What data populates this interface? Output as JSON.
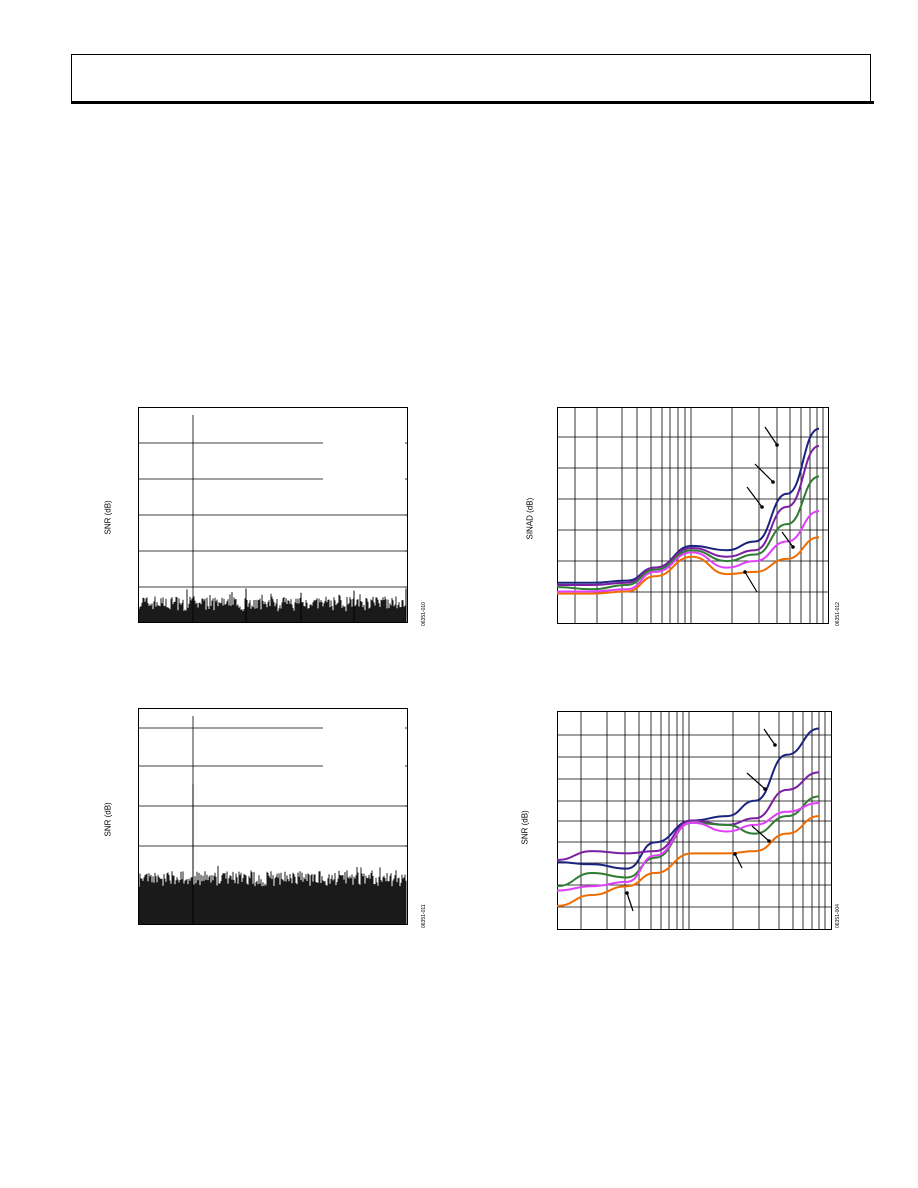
{
  "page": {
    "header": {
      "text": ""
    }
  },
  "figures": [
    {
      "id": "fig-fft-1",
      "ylabel": "SNR (dB)",
      "code": "06351-010",
      "type": "fft"
    },
    {
      "id": "fig-sinad",
      "ylabel": "SINAD (dB)",
      "code": "06351-012",
      "type": "log-curves"
    },
    {
      "id": "fig-fft-2",
      "ylabel": "SNR (dB)",
      "code": "06351-011",
      "type": "fft"
    },
    {
      "id": "fig-snr",
      "ylabel": "SNR (dB)",
      "code": "06351-004",
      "type": "log-curves"
    }
  ],
  "chart_data": [
    {
      "type": "bar",
      "title": "",
      "ylabel": "SNR (dB)",
      "xlabel": "",
      "description_note": "",
      "noise_floor_relative": 0.92,
      "spurs_relative_x": [
        0.4,
        0.6,
        0.8,
        1.0
      ],
      "spur_heights_relative": [
        0.84,
        0.86,
        0.85,
        0.84
      ]
    },
    {
      "type": "line",
      "title": "",
      "xlabel": "",
      "ylabel": "SINAD (dB)",
      "xscale": "log",
      "series": [
        {
          "color": "#1a237e",
          "values": [
            0.81,
            0.81,
            0.8,
            0.74,
            0.64,
            0.66,
            0.62,
            0.4,
            0.1
          ]
        },
        {
          "color": "#7b1fa2",
          "values": [
            0.82,
            0.82,
            0.81,
            0.74,
            0.65,
            0.69,
            0.66,
            0.46,
            0.18
          ]
        },
        {
          "color": "#2e7d32",
          "values": [
            0.83,
            0.84,
            0.82,
            0.75,
            0.66,
            0.71,
            0.68,
            0.54,
            0.32
          ]
        },
        {
          "color": "#e040fb",
          "values": [
            0.85,
            0.85,
            0.84,
            0.76,
            0.67,
            0.74,
            0.71,
            0.62,
            0.48
          ]
        },
        {
          "color": "#ef6c00",
          "values": [
            0.86,
            0.86,
            0.85,
            0.78,
            0.69,
            0.77,
            0.76,
            0.7,
            0.6
          ]
        }
      ]
    },
    {
      "type": "bar",
      "title": "",
      "ylabel": "SNR (dB)",
      "xlabel": "",
      "noise_floor_relative": 0.8,
      "spurs_relative_x": [
        0.2
      ],
      "spur_heights_relative": [
        0.35
      ]
    },
    {
      "type": "line",
      "title": "",
      "xlabel": "",
      "ylabel": "SNR (dB)",
      "xscale": "log",
      "series": [
        {
          "color": "#1a237e",
          "values": [
            0.69,
            0.7,
            0.72,
            0.6,
            0.5,
            0.48,
            0.41,
            0.2,
            0.08
          ]
        },
        {
          "color": "#7b1fa2",
          "values": [
            0.68,
            0.64,
            0.65,
            0.64,
            0.5,
            0.52,
            0.49,
            0.36,
            0.28
          ]
        },
        {
          "color": "#2e7d32",
          "values": [
            0.8,
            0.74,
            0.76,
            0.67,
            0.51,
            0.52,
            0.56,
            0.48,
            0.39
          ]
        },
        {
          "color": "#e040fb",
          "values": [
            0.82,
            0.8,
            0.78,
            0.66,
            0.51,
            0.55,
            0.52,
            0.46,
            0.42
          ]
        },
        {
          "color": "#ef6c00",
          "values": [
            0.89,
            0.84,
            0.8,
            0.74,
            0.65,
            0.65,
            0.64,
            0.56,
            0.48
          ]
        }
      ]
    }
  ]
}
